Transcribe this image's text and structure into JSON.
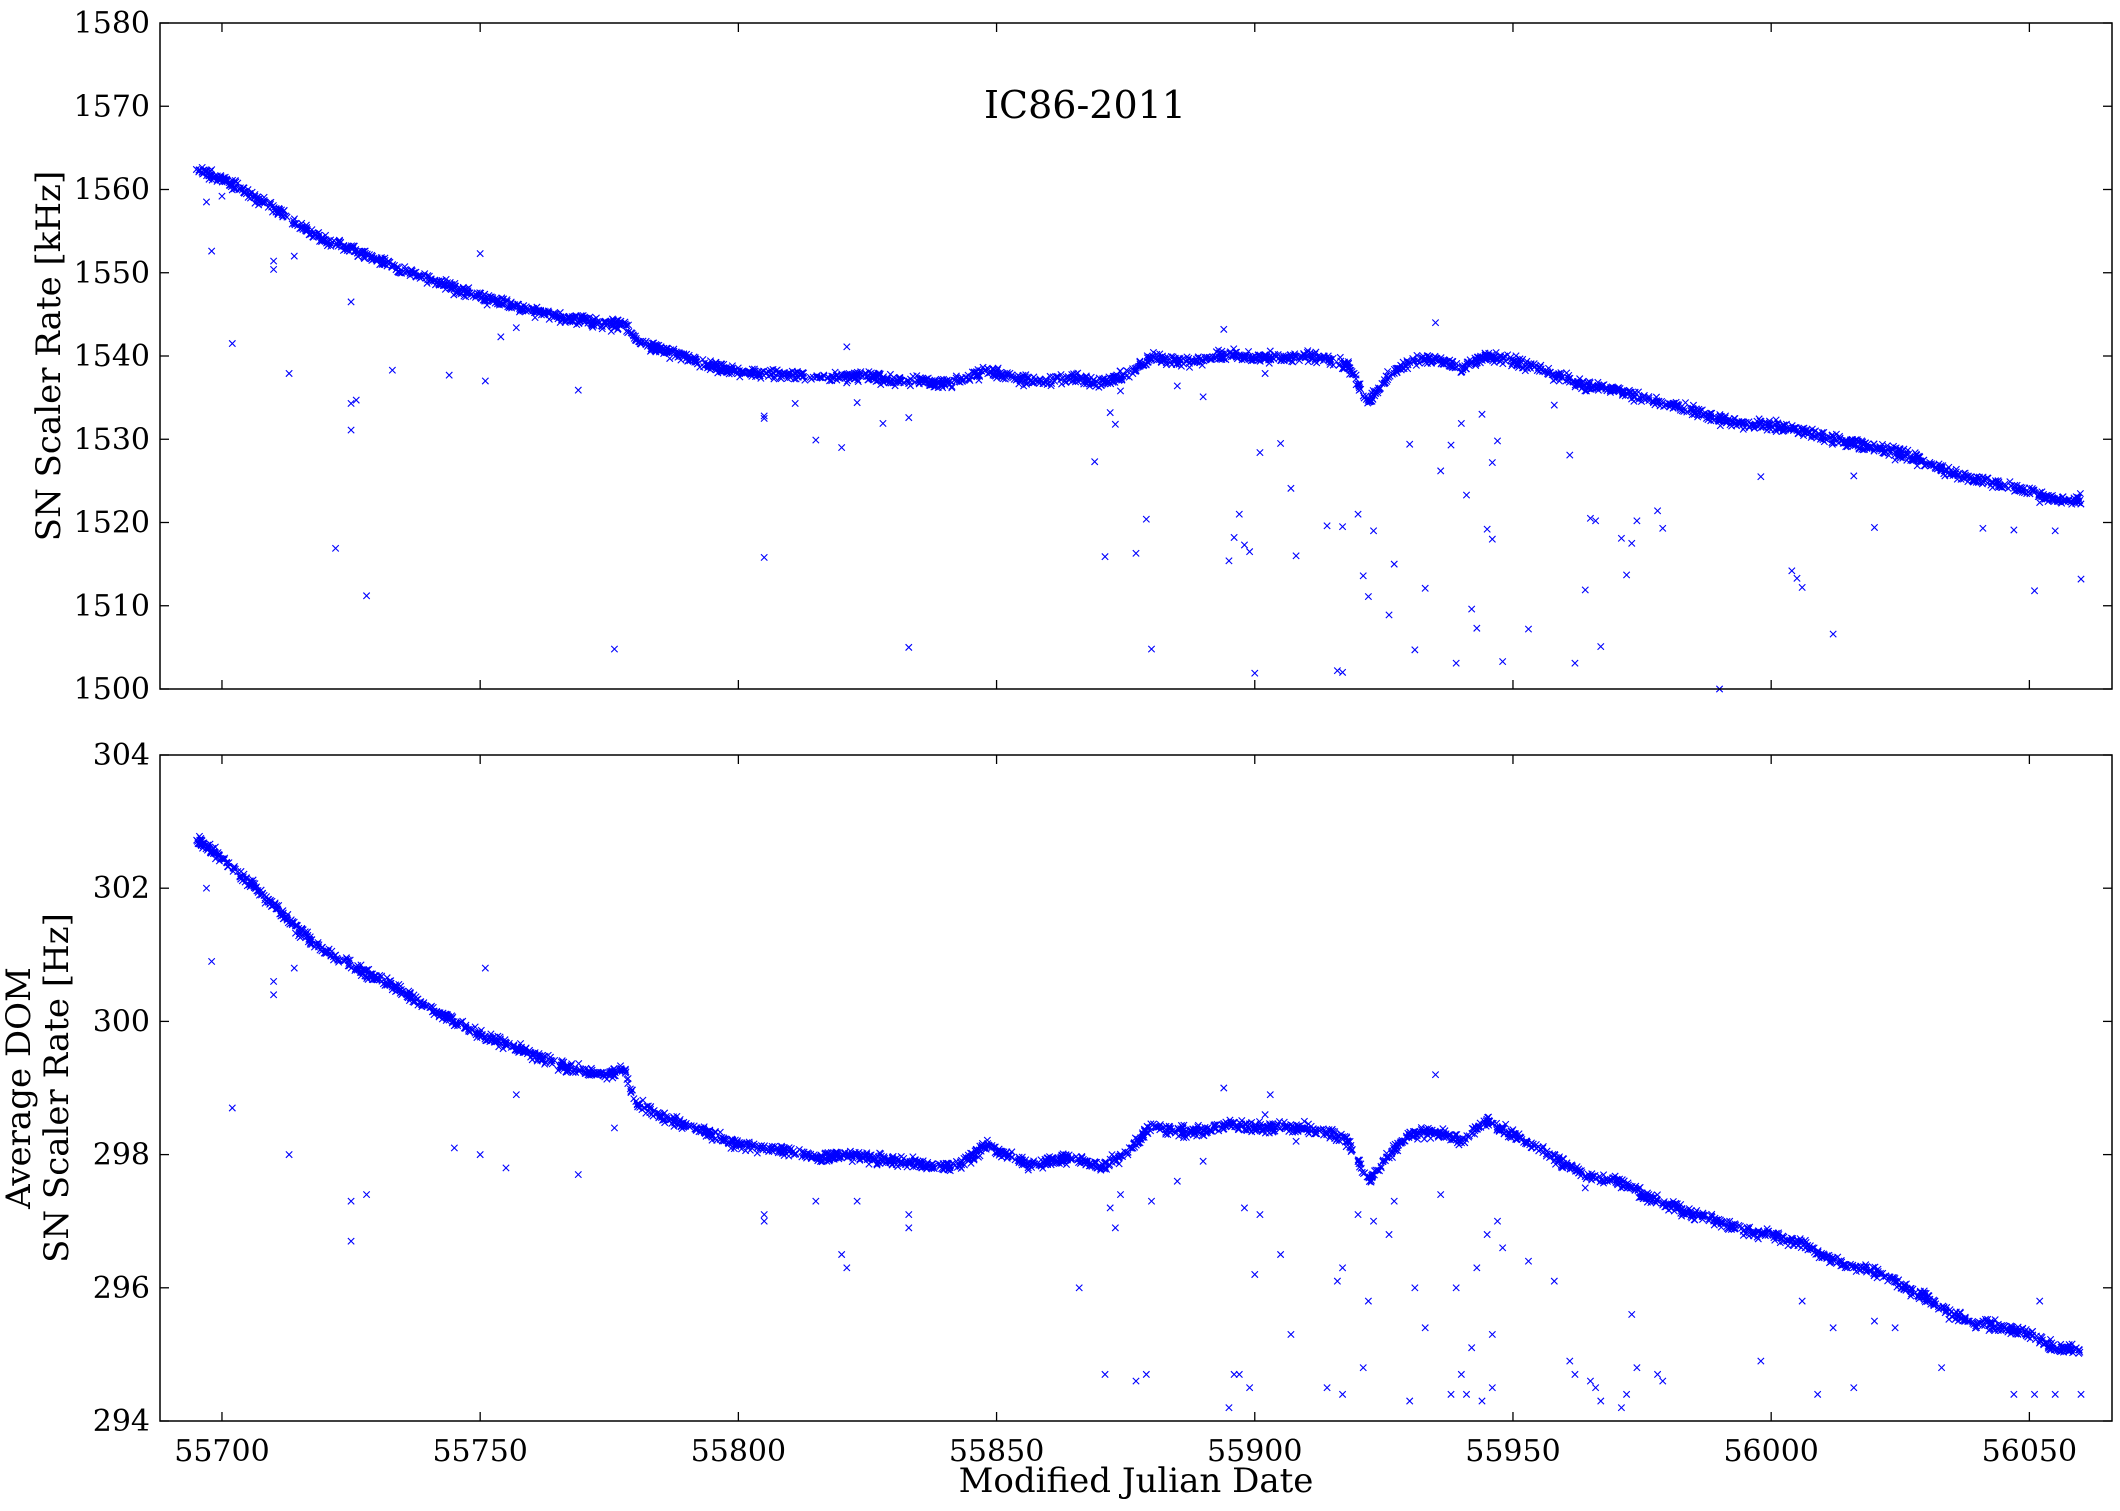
{
  "chart_data": [
    {
      "type": "scatter",
      "title": "IC86-2011",
      "xlabel": "",
      "ylabel": "SN Scaler Rate [kHz]",
      "xlim": [
        55688,
        56066
      ],
      "ylim": [
        1500,
        1580
      ],
      "xticks": [
        55700,
        55750,
        55800,
        55850,
        55900,
        55950,
        56000,
        56050
      ],
      "xtick_labels_visible": false,
      "yticks": [
        1500,
        1510,
        1520,
        1530,
        1540,
        1550,
        1560,
        1570,
        1580
      ],
      "marker": "x",
      "color": "#0000ff",
      "grid": false,
      "trend": {
        "x": [
          55695,
          55700,
          55705,
          55710,
          55715,
          55720,
          55725,
          55730,
          55735,
          55740,
          55745,
          55750,
          55755,
          55760,
          55765,
          55770,
          55775,
          55778,
          55780,
          55785,
          55790,
          55795,
          55800,
          55805,
          55810,
          55815,
          55820,
          55825,
          55830,
          55835,
          55840,
          55845,
          55848,
          55852,
          55856,
          55860,
          55865,
          55870,
          55875,
          55880,
          55885,
          55890,
          55895,
          55900,
          55905,
          55910,
          55915,
          55918,
          55922,
          55926,
          55930,
          55935,
          55940,
          55945,
          55950,
          55955,
          55960,
          55965,
          55970,
          55975,
          55980,
          55985,
          55990,
          55995,
          56000,
          56005,
          56010,
          56015,
          56020,
          56025,
          56030,
          56035,
          56040,
          56045,
          56050,
          56055,
          56060
        ],
        "y": [
          1562.5,
          1561.2,
          1559.6,
          1557.8,
          1555.6,
          1554.0,
          1552.8,
          1551.6,
          1550.3,
          1549.2,
          1548.1,
          1547.0,
          1546.3,
          1545.5,
          1544.8,
          1544.3,
          1543.7,
          1543.9,
          1541.8,
          1540.8,
          1539.8,
          1538.7,
          1538.0,
          1537.9,
          1537.8,
          1537.4,
          1537.6,
          1537.6,
          1537.1,
          1536.9,
          1536.7,
          1537.4,
          1538.2,
          1537.7,
          1537.0,
          1537.1,
          1537.4,
          1536.8,
          1537.6,
          1539.9,
          1539.4,
          1539.5,
          1540.2,
          1539.8,
          1539.7,
          1539.9,
          1539.6,
          1538.8,
          1534.5,
          1537.7,
          1539.3,
          1539.6,
          1538.7,
          1540.0,
          1539.4,
          1538.5,
          1537.3,
          1536.3,
          1535.9,
          1534.9,
          1534.2,
          1533.3,
          1532.4,
          1531.8,
          1531.6,
          1531.2,
          1530.2,
          1529.6,
          1529.1,
          1528.3,
          1527.2,
          1525.9,
          1525.1,
          1524.5,
          1523.8,
          1522.8,
          1522.7
        ]
      },
      "outliers": {
        "x": [
          55697,
          55698,
          55700,
          55702,
          55710,
          55710,
          55713,
          55714,
          55722,
          55725,
          55725,
          55725,
          55726,
          55728,
          55733,
          55744,
          55750,
          55751,
          55754,
          55757,
          55769,
          55776,
          55805,
          55805,
          55805,
          55811,
          55815,
          55820,
          55821,
          55823,
          55828,
          55833,
          55833,
          55869,
          55871,
          55872,
          55873,
          55874,
          55877,
          55879,
          55880,
          55885,
          55890,
          55894,
          55895,
          55896,
          55897,
          55898,
          55899,
          55900,
          55901,
          55902,
          55903,
          55905,
          55907,
          55908,
          55914,
          55916,
          55917,
          55917,
          55920,
          55921,
          55922,
          55923,
          55926,
          55927,
          55930,
          55931,
          55933,
          55935,
          55936,
          55938,
          55939,
          55940,
          55941,
          55942,
          55943,
          55944,
          55945,
          55946,
          55946,
          55947,
          55948,
          55953,
          55958,
          55961,
          55962,
          55964,
          55965,
          55966,
          55967,
          55971,
          55972,
          55973,
          55974,
          55978,
          55979,
          55990,
          55998,
          56004,
          56005,
          56006,
          56012,
          56016,
          56020,
          56024,
          56033,
          56041,
          56047,
          56051,
          56052,
          56055,
          56060
        ],
        "y": [
          1558.5,
          1552.6,
          1559.2,
          1541.5,
          1550.4,
          1551.4,
          1537.9,
          1552.0,
          1516.9,
          1546.5,
          1534.3,
          1531.1,
          1534.7,
          1511.2,
          1538.3,
          1537.7,
          1552.3,
          1537.0,
          1542.3,
          1543.4,
          1535.9,
          1504.8,
          1532.8,
          1532.5,
          1515.8,
          1534.3,
          1529.9,
          1529.0,
          1541.1,
          1534.4,
          1531.9,
          1532.6,
          1505.0,
          1527.3,
          1515.9,
          1533.2,
          1531.8,
          1535.8,
          1516.3,
          1520.4,
          1504.8,
          1536.4,
          1535.1,
          1543.2,
          1515.4,
          1518.2,
          1521.0,
          1517.3,
          1516.5,
          1501.9,
          1528.4,
          1537.9,
          1540.6,
          1529.5,
          1524.1,
          1516.0,
          1519.6,
          1502.2,
          1502.0,
          1519.5,
          1521.0,
          1513.6,
          1511.1,
          1519.0,
          1508.9,
          1515.0,
          1529.4,
          1504.7,
          1512.1,
          1544.0,
          1526.2,
          1529.3,
          1503.1,
          1531.9,
          1523.3,
          1509.6,
          1507.3,
          1533.0,
          1519.2,
          1518.0,
          1527.2,
          1529.8,
          1503.3,
          1507.2,
          1534.1,
          1528.1,
          1503.1,
          1511.9,
          1520.5,
          1520.2,
          1505.1,
          1518.1,
          1513.7,
          1517.5,
          1520.2,
          1521.4,
          1519.3,
          1500.0,
          1525.5,
          1514.2,
          1513.3,
          1512.2,
          1506.6,
          1525.6,
          1519.4,
          1527.5,
          1526.2,
          1519.3,
          1519.1,
          1511.8,
          1522.4,
          1519.0,
          1513.2
        ]
      }
    },
    {
      "type": "scatter",
      "title": "",
      "xlabel": "Modified Julian Date",
      "ylabel": [
        "Average DOM",
        "SN Scaler Rate [Hz]"
      ],
      "xlim": [
        55688,
        56066
      ],
      "ylim": [
        294,
        304
      ],
      "xticks": [
        55700,
        55750,
        55800,
        55850,
        55900,
        55950,
        56000,
        56050
      ],
      "xtick_labels_visible": true,
      "yticks": [
        294,
        296,
        298,
        300,
        302,
        304
      ],
      "marker": "x",
      "color": "#0000ff",
      "grid": false,
      "trend": {
        "x": [
          55695,
          55700,
          55705,
          55710,
          55715,
          55720,
          55725,
          55730,
          55735,
          55740,
          55745,
          55750,
          55755,
          55760,
          55765,
          55770,
          55775,
          55778,
          55780,
          55785,
          55790,
          55795,
          55800,
          55805,
          55810,
          55815,
          55820,
          55825,
          55830,
          55835,
          55840,
          55845,
          55848,
          55852,
          55856,
          55860,
          55865,
          55870,
          55875,
          55880,
          55885,
          55890,
          55895,
          55900,
          55905,
          55910,
          55915,
          55918,
          55922,
          55926,
          55930,
          55935,
          55940,
          55945,
          55950,
          55955,
          55960,
          55965,
          55970,
          55975,
          55980,
          55985,
          55990,
          55995,
          56000,
          56005,
          56010,
          56015,
          56020,
          56025,
          56030,
          56035,
          56040,
          56045,
          56050,
          56055,
          56060
        ],
        "y": [
          302.75,
          302.45,
          302.1,
          301.75,
          301.35,
          301.05,
          300.85,
          300.65,
          300.45,
          300.2,
          300.0,
          299.8,
          299.65,
          299.5,
          299.35,
          299.25,
          299.2,
          299.3,
          298.8,
          298.55,
          298.45,
          298.3,
          298.15,
          298.1,
          298.05,
          297.95,
          298.0,
          297.95,
          297.9,
          297.85,
          297.8,
          297.95,
          298.15,
          298.0,
          297.85,
          297.9,
          297.95,
          297.8,
          298.0,
          298.45,
          298.35,
          298.35,
          298.45,
          298.4,
          298.4,
          298.4,
          298.3,
          298.2,
          297.6,
          298.0,
          298.3,
          298.35,
          298.2,
          298.5,
          298.3,
          298.1,
          297.85,
          297.65,
          297.6,
          297.4,
          297.25,
          297.1,
          297.0,
          296.85,
          296.8,
          296.7,
          296.5,
          296.35,
          296.25,
          296.05,
          295.85,
          295.6,
          295.45,
          295.4,
          295.3,
          295.1,
          295.05
        ]
      },
      "outliers": {
        "x": [
          55697,
          55698,
          55702,
          55710,
          55710,
          55713,
          55714,
          55725,
          55725,
          55728,
          55745,
          55750,
          55751,
          55755,
          55757,
          55769,
          55776,
          55805,
          55805,
          55815,
          55820,
          55821,
          55823,
          55833,
          55833,
          55866,
          55871,
          55872,
          55873,
          55874,
          55877,
          55879,
          55880,
          55885,
          55890,
          55894,
          55895,
          55896,
          55897,
          55898,
          55899,
          55900,
          55901,
          55902,
          55903,
          55905,
          55907,
          55908,
          55914,
          55916,
          55917,
          55917,
          55920,
          55921,
          55922,
          55923,
          55926,
          55927,
          55930,
          55931,
          55933,
          55935,
          55936,
          55938,
          55939,
          55940,
          55941,
          55942,
          55943,
          55944,
          55945,
          55946,
          55946,
          55947,
          55948,
          55953,
          55958,
          55961,
          55962,
          55964,
          55965,
          55966,
          55967,
          55971,
          55972,
          55973,
          55974,
          55978,
          55979,
          55998,
          56006,
          56009,
          56012,
          56016,
          56020,
          56024,
          56033,
          56041,
          56047,
          56051,
          56052,
          56055,
          56060
        ],
        "y": [
          302.0,
          300.9,
          298.7,
          300.6,
          300.4,
          298.0,
          300.8,
          297.3,
          296.7,
          297.4,
          298.1,
          298.0,
          300.8,
          297.8,
          298.9,
          297.7,
          298.4,
          297.1,
          297.0,
          297.3,
          296.5,
          296.3,
          297.3,
          297.1,
          296.9,
          296.0,
          294.7,
          297.2,
          296.9,
          297.4,
          294.6,
          294.7,
          297.3,
          297.6,
          297.9,
          299.0,
          294.2,
          294.7,
          294.7,
          297.2,
          294.5,
          296.2,
          297.1,
          298.6,
          298.9,
          296.5,
          295.3,
          298.2,
          294.5,
          296.1,
          294.4,
          296.3,
          297.1,
          294.8,
          295.8,
          297.0,
          296.8,
          297.3,
          294.3,
          296.0,
          295.4,
          299.2,
          297.4,
          294.4,
          296.0,
          294.7,
          294.4,
          295.1,
          296.3,
          294.3,
          296.8,
          295.3,
          294.5,
          297.0,
          296.6,
          296.4,
          296.1,
          294.9,
          294.7,
          297.5,
          294.6,
          294.5,
          294.3,
          294.2,
          294.4,
          295.6,
          294.8,
          294.7,
          294.6,
          294.9,
          295.8,
          294.4,
          295.4,
          294.5,
          295.5,
          295.4,
          294.8,
          295.5,
          294.4,
          294.4,
          295.8,
          294.4,
          294.4
        ]
      }
    }
  ]
}
